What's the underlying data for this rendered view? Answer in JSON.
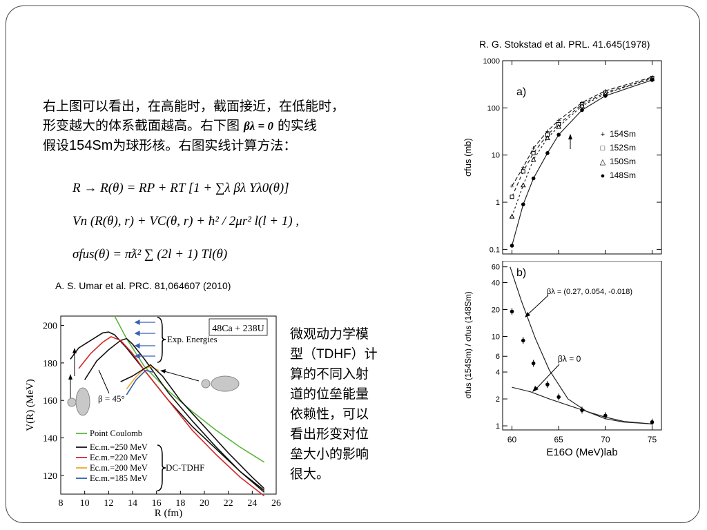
{
  "refs": {
    "top_right": "R. G. Stokstad et al. PRL. 41.645(1978)",
    "left": "A. S. Umar et al. PRC. 81,064607 (2010)"
  },
  "para": {
    "line1": "右上图可以看出，在高能时，截面接近，在低能时，",
    "line2a": "形变越大的体系截面越高。右下图",
    "beta_eq": "βλ = 0",
    "line2b": "的实线",
    "line3a": "假设",
    "line3b": "154Sm",
    "line3c": "为球形核。右图实线计算方法："
  },
  "formulas": {
    "f1": "R → R(θ) = RP + RT [1 + ∑λ βλ Yλ0(θ)]",
    "f2": "Vn (R(θ), r) + VC(θ, r) + ħ² / 2μr² l(l + 1) ,",
    "f3": "σfus(θ) = πƛ² ∑ (2l + 1) Tl(θ)"
  },
  "side_text": {
    "l1": "微观动力学模",
    "l2a": "型（",
    "l2b": "TDHF",
    "l2c": "）计",
    "l3": "算的不同入射",
    "l4": "道的位垒能量",
    "l5": "依赖性，可以",
    "l6": "看出形变对位",
    "l7": "垒大小的影响",
    "l8": "很大。"
  },
  "chart_data": [
    {
      "type": "line",
      "title": "48Ca + 238U",
      "xlabel": "R (fm)",
      "ylabel": "V(R) (MeV)",
      "xlim": [
        8,
        26
      ],
      "ylim": [
        110,
        205
      ],
      "x_ticks": [
        "8",
        "10",
        "12",
        "14",
        "16",
        "18",
        "20",
        "22",
        "24",
        "26"
      ],
      "y_ticks": [
        "120",
        "140",
        "160",
        "180",
        "200"
      ],
      "annotations": [
        "Exp. Energies",
        "β = 45°",
        "DC-TDHF"
      ],
      "legend": [
        "Point Coulomb",
        "Ec.m.=250 MeV",
        "Ec.m.=220 MeV",
        "Ec.m.=200 MeV",
        "Ec.m.=185 MeV"
      ],
      "series": [
        {
          "name": "Point Coulomb",
          "color": "#5ab53c",
          "x": [
            12.5,
            13.5,
            15,
            17,
            19,
            21,
            23,
            25
          ],
          "y": [
            205,
            193,
            178,
            165,
            154,
            144,
            135,
            127
          ]
        },
        {
          "name": "Ec.m.=250 MeV (tip)",
          "color": "#111111",
          "x": [
            8.8,
            9.5,
            10.5,
            11.5,
            12,
            12.5,
            13.5,
            15,
            17,
            19,
            21,
            23,
            25
          ],
          "y": [
            182,
            188,
            192,
            196,
            196.5,
            195,
            188,
            176,
            160,
            146,
            134,
            122,
            112
          ]
        },
        {
          "name": "Ec.m.=250 MeV (side)",
          "color": "#111111",
          "x": [
            10,
            11,
            12,
            13,
            13.5,
            14,
            15,
            17,
            19,
            21,
            23,
            25
          ],
          "y": [
            171,
            181,
            187,
            192,
            193,
            190,
            182,
            164,
            149,
            135,
            122,
            111
          ]
        },
        {
          "name": "Ec.m.=220 MeV",
          "color": "#d62728",
          "x": [
            9.5,
            10.5,
            11.5,
            12.2,
            13,
            14,
            15,
            17,
            19,
            21,
            23,
            25
          ],
          "y": [
            177,
            185,
            191,
            194,
            192,
            185,
            176,
            160,
            144,
            131,
            119,
            109
          ]
        },
        {
          "name": "Ec.m.=200 MeV",
          "color": "#f5a623",
          "x": [
            13.5,
            14.2,
            15,
            15.5,
            16.2
          ],
          "y": [
            166,
            172,
            177,
            178,
            176
          ]
        },
        {
          "name": "Ec.m.=185 MeV",
          "color": "#2f5fa7",
          "x": [
            13.5,
            14.3,
            15.1,
            15.8
          ],
          "y": [
            163,
            171,
            176,
            175
          ]
        },
        {
          "name": "β = 45°",
          "color": "#111111",
          "x": [
            13,
            14,
            15,
            15.5,
            16.5,
            18,
            20,
            22,
            24,
            25
          ],
          "y": [
            170,
            173,
            177,
            179,
            173,
            160,
            146,
            132,
            119,
            113
          ]
        }
      ]
    },
    {
      "type": "line",
      "title": "a)",
      "xlabel": "E16O (MeV)lab",
      "ylabel": "σfus (mb)",
      "yscale": "log",
      "ylim": [
        0.1,
        1000
      ],
      "xlim": [
        59,
        76
      ],
      "y_ticks": [
        "0.1",
        "1",
        "10",
        "100",
        "1000"
      ],
      "legend": [
        "154Sm",
        "152Sm",
        "150Sm",
        "148Sm"
      ],
      "series": [
        {
          "name": "154Sm",
          "marker": "plus",
          "x": [
            60,
            61.2,
            62.3,
            63.8,
            65,
            67.5,
            70,
            75
          ],
          "y": [
            2.2,
            5.5,
            14,
            32,
            55,
            130,
            230,
            450
          ]
        },
        {
          "name": "152Sm",
          "marker": "square",
          "x": [
            60,
            61.2,
            62.3,
            63.8,
            65,
            67.5,
            70,
            75
          ],
          "y": [
            1.3,
            4.5,
            11,
            27,
            45,
            120,
            210,
            430
          ]
        },
        {
          "name": "150Sm",
          "marker": "triangle",
          "x": [
            60,
            61.2,
            62.3,
            63.8,
            65,
            67.5,
            70,
            75
          ],
          "y": [
            0.5,
            2.3,
            8,
            23,
            40,
            110,
            200,
            420
          ]
        },
        {
          "name": "148Sm",
          "marker": "dot",
          "x": [
            60,
            61.2,
            62.3,
            63.8,
            65,
            67.5,
            70,
            75
          ],
          "y": [
            0.12,
            0.9,
            3.2,
            11,
            27,
            90,
            180,
            390
          ]
        }
      ]
    },
    {
      "type": "line",
      "title": "b)",
      "xlabel": "E16O (MeV)lab",
      "ylabel": "σfus (154Sm) / σfus (148Sm)",
      "yscale": "log",
      "ylim": [
        0.9,
        70
      ],
      "xlim": [
        59,
        76
      ],
      "x_ticks": [
        "60",
        "65",
        "70",
        "75"
      ],
      "y_ticks": [
        "1",
        "2",
        "4",
        "6",
        "10",
        "20",
        "40",
        "60"
      ],
      "annotations": [
        "βλ = (0.27, 0.054, -0.018)",
        "βλ = 0"
      ],
      "series": [
        {
          "name": "data",
          "marker": "dot",
          "x": [
            60,
            61.2,
            62.3,
            63.8,
            65,
            67.5,
            70,
            75
          ],
          "y": [
            19,
            9,
            5,
            2.9,
            2.1,
            1.5,
            1.3,
            1.1
          ]
        }
      ]
    }
  ]
}
